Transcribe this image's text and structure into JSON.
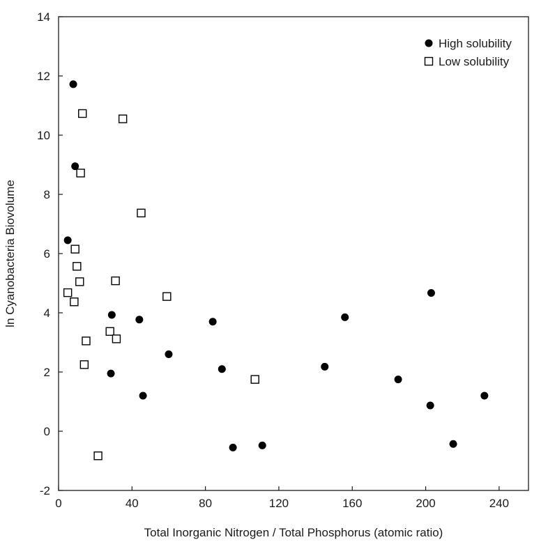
{
  "chart_data": {
    "type": "scatter",
    "title": "",
    "xlabel": "Total Inorganic Nitrogen / Total Phosphorus (atomic ratio)",
    "ylabel": "ln Cyanobacteria Biovolume",
    "xlim": [
      0,
      256
    ],
    "ylim": [
      -2,
      14
    ],
    "xticks": [
      "0",
      "40",
      "80",
      "120",
      "160",
      "200",
      "240"
    ],
    "yticks": [
      "-2",
      "0",
      "2",
      "4",
      "6",
      "8",
      "10",
      "12",
      "14"
    ],
    "legend_position": "top-right",
    "grid": false,
    "series": [
      {
        "name": "High solubility",
        "marker": "filled-circle",
        "color": "#000000",
        "points": [
          {
            "x": 8,
            "y": 11.72
          },
          {
            "x": 9,
            "y": 8.95
          },
          {
            "x": 5,
            "y": 6.45
          },
          {
            "x": 29,
            "y": 3.93
          },
          {
            "x": 28.5,
            "y": 1.95
          },
          {
            "x": 44,
            "y": 3.77
          },
          {
            "x": 46,
            "y": 1.2
          },
          {
            "x": 60,
            "y": 2.6
          },
          {
            "x": 84,
            "y": 3.7
          },
          {
            "x": 89,
            "y": 2.1
          },
          {
            "x": 95,
            "y": -0.55
          },
          {
            "x": 111,
            "y": -0.48
          },
          {
            "x": 145,
            "y": 2.18
          },
          {
            "x": 156,
            "y": 3.85
          },
          {
            "x": 185,
            "y": 1.75
          },
          {
            "x": 202.5,
            "y": 0.87
          },
          {
            "x": 203,
            "y": 4.67
          },
          {
            "x": 215,
            "y": -0.43
          },
          {
            "x": 232,
            "y": 1.2
          }
        ]
      },
      {
        "name": "Low solubility",
        "marker": "open-square",
        "color": "#000000",
        "points": [
          {
            "x": 13,
            "y": 10.73
          },
          {
            "x": 35,
            "y": 10.55
          },
          {
            "x": 12,
            "y": 8.72
          },
          {
            "x": 45,
            "y": 7.37
          },
          {
            "x": 9,
            "y": 6.15
          },
          {
            "x": 10,
            "y": 5.57
          },
          {
            "x": 11.5,
            "y": 5.05
          },
          {
            "x": 5,
            "y": 4.68
          },
          {
            "x": 8.5,
            "y": 4.37
          },
          {
            "x": 31,
            "y": 5.08
          },
          {
            "x": 59,
            "y": 4.55
          },
          {
            "x": 28,
            "y": 3.37
          },
          {
            "x": 31.5,
            "y": 3.12
          },
          {
            "x": 15,
            "y": 3.05
          },
          {
            "x": 14,
            "y": 2.25
          },
          {
            "x": 107,
            "y": 1.75
          },
          {
            "x": 21.5,
            "y": -0.83
          }
        ]
      }
    ]
  }
}
